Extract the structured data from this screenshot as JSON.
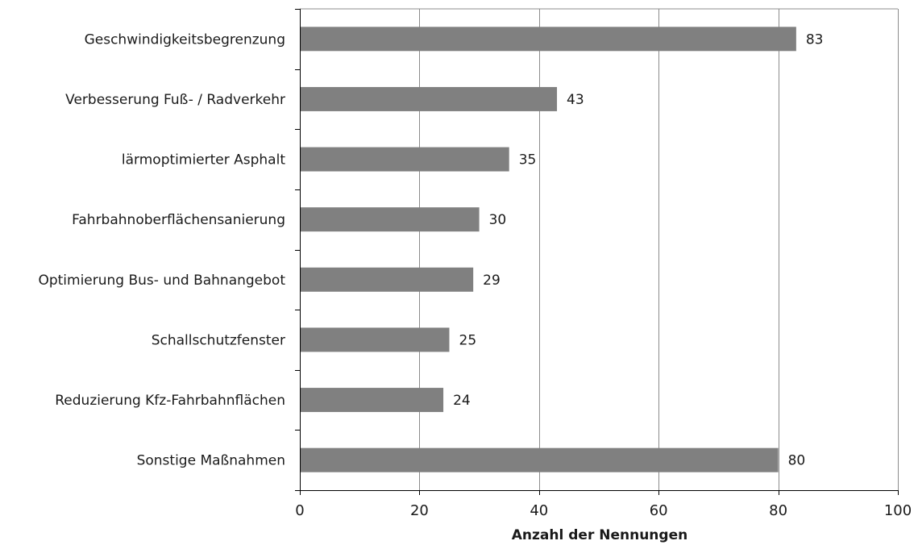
{
  "chart_data": {
    "type": "bar",
    "orientation": "horizontal",
    "title": "",
    "xlabel": "Anzahl der Nennungen",
    "ylabel": "",
    "categories": [
      "Geschwindigkeitsbegrenzung",
      "Verbesserung Fuß- / Radverkehr",
      "lärmoptimierter Asphalt",
      "Fahrbahnoberflächensanierung",
      "Optimierung Bus- und Bahnangebot",
      "Schallschutzfenster",
      "Reduzierung Kfz-Fahrbahnflächen",
      "Sonstige Maßnahmen"
    ],
    "values": [
      83,
      43,
      35,
      30,
      29,
      25,
      24,
      80
    ],
    "xlim": [
      0,
      100
    ],
    "xticks": [
      0,
      20,
      40,
      60,
      80,
      100
    ],
    "grid": true,
    "data_labels": true,
    "colors": {
      "bar": "#808080",
      "grid": "#8c8c8c",
      "axis": "#000000"
    }
  }
}
